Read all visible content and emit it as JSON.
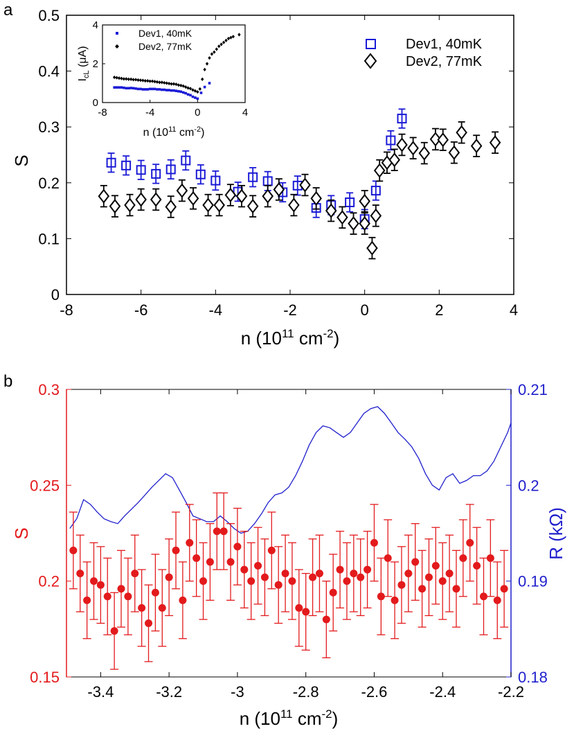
{
  "panels": {
    "a": "a",
    "b": "b"
  },
  "colors": {
    "dev1": "#1a1ad6",
    "dev2": "#000000",
    "s_red": "#e31a1c",
    "r_blue": "#1f1fcc"
  },
  "chart_data": [
    {
      "id": "panel-a",
      "type": "scatter",
      "xlabel": "n (10^11 cm^-2)",
      "ylabel": "S",
      "xlim": [
        -8,
        4
      ],
      "ylim": [
        0,
        0.5
      ],
      "xticks": [
        -8,
        -6,
        -4,
        -2,
        0,
        2,
        4
      ],
      "yticks": [
        0,
        0.1,
        0.2,
        0.3,
        0.4,
        0.5
      ],
      "legend_position": "top-right",
      "series": [
        {
          "name": "Dev1, 40mK",
          "marker": "square",
          "err": 0.017,
          "x": [
            -6.8,
            -6.4,
            -6.0,
            -5.6,
            -5.2,
            -4.8,
            -4.4,
            -4.0,
            -3.4,
            -3.0,
            -2.6,
            -2.2,
            -1.8,
            -1.3,
            -0.9,
            -0.4,
            0.0,
            0.3,
            0.7,
            1.0
          ],
          "y": [
            0.236,
            0.231,
            0.223,
            0.216,
            0.224,
            0.24,
            0.215,
            0.204,
            0.184,
            0.21,
            0.203,
            0.183,
            0.195,
            0.155,
            0.16,
            0.165,
            0.135,
            0.186,
            0.276,
            0.315
          ]
        },
        {
          "name": "Dev2, 77mK",
          "marker": "diamond",
          "err": 0.019,
          "x": [
            -7.0,
            -6.7,
            -6.3,
            -6.0,
            -5.6,
            -5.2,
            -4.9,
            -4.6,
            -4.2,
            -3.9,
            -3.6,
            -3.3,
            -3.0,
            -2.6,
            -2.3,
            -1.9,
            -1.6,
            -1.3,
            -0.9,
            -0.6,
            -0.3,
            0.0,
            0.0,
            0.2,
            0.3,
            0.4,
            0.6,
            0.8,
            1.0,
            1.3,
            1.6,
            1.9,
            2.1,
            2.4,
            2.6,
            3.0,
            3.5
          ],
          "y": [
            0.176,
            0.158,
            0.16,
            0.17,
            0.17,
            0.157,
            0.186,
            0.172,
            0.16,
            0.16,
            0.178,
            0.176,
            0.158,
            0.176,
            0.188,
            0.16,
            0.196,
            0.172,
            0.15,
            0.138,
            0.127,
            0.167,
            0.127,
            0.083,
            0.141,
            0.222,
            0.236,
            0.241,
            0.268,
            0.262,
            0.253,
            0.278,
            0.277,
            0.254,
            0.29,
            0.266,
            0.272
          ]
        }
      ]
    },
    {
      "id": "panel-a-inset",
      "type": "scatter",
      "xlabel": "n (10^11 cm^-2)",
      "ylabel": "I_cL (μA)",
      "xlim": [
        -8,
        4
      ],
      "ylim": [
        0,
        4
      ],
      "xticks": [
        -8,
        -4,
        0,
        4
      ],
      "yticks": [
        0,
        2,
        4
      ],
      "legend_position": "top-left",
      "series": [
        {
          "name": "Dev1, 40mK",
          "x": [
            -7.0,
            -6.8,
            -6.6,
            -6.4,
            -6.2,
            -6.0,
            -5.8,
            -5.6,
            -5.4,
            -5.2,
            -5.0,
            -4.8,
            -4.6,
            -4.4,
            -4.2,
            -4.0,
            -3.8,
            -3.6,
            -3.4,
            -3.2,
            -3.0,
            -2.8,
            -2.6,
            -2.4,
            -2.2,
            -2.0,
            -1.8,
            -1.6,
            -1.4,
            -1.2,
            -1.0,
            -0.8,
            -0.6,
            -0.4,
            -0.2,
            0.0,
            0.3,
            0.6,
            1.0
          ],
          "y": [
            0.78,
            0.78,
            0.78,
            0.78,
            0.76,
            0.74,
            0.74,
            0.75,
            0.74,
            0.72,
            0.7,
            0.7,
            0.68,
            0.68,
            0.68,
            0.7,
            0.7,
            0.7,
            0.68,
            0.68,
            0.66,
            0.66,
            0.64,
            0.64,
            0.62,
            0.62,
            0.6,
            0.58,
            0.56,
            0.52,
            0.48,
            0.42,
            0.38,
            0.3,
            0.25,
            0.2,
            0.5,
            0.8,
            1.0
          ]
        },
        {
          "name": "Dev2, 77mK",
          "x": [
            -7.0,
            -6.8,
            -6.6,
            -6.4,
            -6.2,
            -6.0,
            -5.8,
            -5.6,
            -5.4,
            -5.2,
            -5.0,
            -4.8,
            -4.6,
            -4.4,
            -4.2,
            -4.0,
            -3.8,
            -3.6,
            -3.4,
            -3.2,
            -3.0,
            -2.8,
            -2.6,
            -2.4,
            -2.2,
            -2.0,
            -1.8,
            -1.6,
            -1.4,
            -1.2,
            -1.0,
            -0.8,
            -0.6,
            -0.4,
            -0.2,
            0.0,
            0.2,
            0.4,
            0.6,
            0.8,
            1.0,
            1.2,
            1.4,
            1.6,
            1.8,
            2.0,
            2.2,
            2.4,
            2.6,
            2.8,
            3.0,
            3.5
          ],
          "y": [
            1.3,
            1.28,
            1.26,
            1.24,
            1.22,
            1.22,
            1.2,
            1.2,
            1.18,
            1.18,
            1.16,
            1.15,
            1.14,
            1.12,
            1.12,
            1.1,
            1.1,
            1.08,
            1.06,
            1.04,
            1.04,
            1.02,
            1.0,
            0.98,
            0.96,
            0.96,
            0.94,
            0.9,
            0.88,
            0.85,
            0.8,
            0.75,
            0.72,
            0.65,
            0.6,
            0.55,
            0.7,
            1.2,
            1.7,
            2.0,
            2.3,
            2.5,
            2.6,
            2.75,
            2.9,
            3.0,
            3.1,
            3.2,
            3.3,
            3.35,
            3.4,
            3.5
          ]
        }
      ]
    },
    {
      "id": "panel-b",
      "type": "line",
      "xlabel": "n (10^11 cm^-2)",
      "ylabel": "S",
      "y2label": "R (kΩ)",
      "xlim": [
        -3.5,
        -2.2
      ],
      "ylim": [
        0.15,
        0.3
      ],
      "y2lim": [
        0.18,
        0.21
      ],
      "xticks": [
        -3.4,
        -3.2,
        -3.0,
        -2.8,
        -2.6,
        -2.4,
        -2.2
      ],
      "yticks": [
        0.15,
        0.2,
        0.25,
        0.3
      ],
      "y2ticks": [
        0.18,
        0.19,
        0.2,
        0.21
      ],
      "series": [
        {
          "name": "S",
          "type": "scatter-errorbar",
          "axis": "left",
          "x": [
            -3.48,
            -3.46,
            -3.44,
            -3.42,
            -3.4,
            -3.38,
            -3.36,
            -3.34,
            -3.32,
            -3.3,
            -3.28,
            -3.26,
            -3.24,
            -3.22,
            -3.2,
            -3.18,
            -3.16,
            -3.14,
            -3.12,
            -3.1,
            -3.08,
            -3.06,
            -3.04,
            -3.02,
            -3.0,
            -2.98,
            -2.96,
            -2.94,
            -2.92,
            -2.9,
            -2.88,
            -2.86,
            -2.84,
            -2.82,
            -2.8,
            -2.78,
            -2.76,
            -2.74,
            -2.72,
            -2.7,
            -2.68,
            -2.66,
            -2.64,
            -2.62,
            -2.6,
            -2.58,
            -2.56,
            -2.54,
            -2.52,
            -2.5,
            -2.48,
            -2.46,
            -2.44,
            -2.42,
            -2.4,
            -2.38,
            -2.36,
            -2.34,
            -2.32,
            -2.3,
            -2.28,
            -2.26,
            -2.24,
            -2.22
          ],
          "y": [
            0.216,
            0.204,
            0.19,
            0.2,
            0.198,
            0.192,
            0.174,
            0.196,
            0.192,
            0.204,
            0.186,
            0.178,
            0.194,
            0.186,
            0.202,
            0.216,
            0.19,
            0.22,
            0.212,
            0.2,
            0.21,
            0.226,
            0.226,
            0.21,
            0.218,
            0.206,
            0.2,
            0.208,
            0.202,
            0.216,
            0.198,
            0.204,
            0.2,
            0.186,
            0.184,
            0.202,
            0.204,
            0.18,
            0.194,
            0.206,
            0.2,
            0.204,
            0.202,
            0.206,
            0.22,
            0.192,
            0.212,
            0.19,
            0.198,
            0.204,
            0.21,
            0.196,
            0.202,
            0.208,
            0.2,
            0.204,
            0.196,
            0.212,
            0.22,
            0.208,
            0.192,
            0.212,
            0.19,
            0.196
          ],
          "err": 0.02
        },
        {
          "name": "R",
          "type": "line",
          "axis": "right",
          "x": [
            -3.49,
            -3.47,
            -3.45,
            -3.43,
            -3.41,
            -3.39,
            -3.37,
            -3.35,
            -3.33,
            -3.31,
            -3.29,
            -3.27,
            -3.25,
            -3.23,
            -3.21,
            -3.19,
            -3.17,
            -3.15,
            -3.13,
            -3.11,
            -3.09,
            -3.07,
            -3.05,
            -3.03,
            -3.01,
            -2.99,
            -2.97,
            -2.95,
            -2.93,
            -2.91,
            -2.89,
            -2.87,
            -2.85,
            -2.83,
            -2.81,
            -2.79,
            -2.77,
            -2.75,
            -2.73,
            -2.71,
            -2.69,
            -2.67,
            -2.65,
            -2.63,
            -2.61,
            -2.59,
            -2.57,
            -2.55,
            -2.53,
            -2.51,
            -2.49,
            -2.47,
            -2.45,
            -2.43,
            -2.41,
            -2.39,
            -2.37,
            -2.35,
            -2.33,
            -2.31,
            -2.29,
            -2.27,
            -2.25,
            -2.23,
            -2.21,
            -2.2
          ],
          "y": [
            0.1955,
            0.1965,
            0.1985,
            0.198,
            0.1972,
            0.1965,
            0.1962,
            0.196,
            0.1968,
            0.1975,
            0.1982,
            0.199,
            0.1998,
            0.2005,
            0.2012,
            0.2008,
            0.1995,
            0.1982,
            0.1968,
            0.1965,
            0.1962,
            0.1962,
            0.1968,
            0.1962,
            0.1955,
            0.195,
            0.1952,
            0.196,
            0.197,
            0.1982,
            0.199,
            0.1992,
            0.1998,
            0.201,
            0.2025,
            0.2042,
            0.2055,
            0.2062,
            0.206,
            0.2055,
            0.205,
            0.2055,
            0.2065,
            0.2075,
            0.208,
            0.2082,
            0.2075,
            0.2065,
            0.2055,
            0.2048,
            0.204,
            0.2028,
            0.2012,
            0.2,
            0.1995,
            0.2008,
            0.2012,
            0.2002,
            0.2005,
            0.201,
            0.201,
            0.2015,
            0.2025,
            0.204,
            0.2055,
            0.2065
          ]
        }
      ]
    }
  ]
}
